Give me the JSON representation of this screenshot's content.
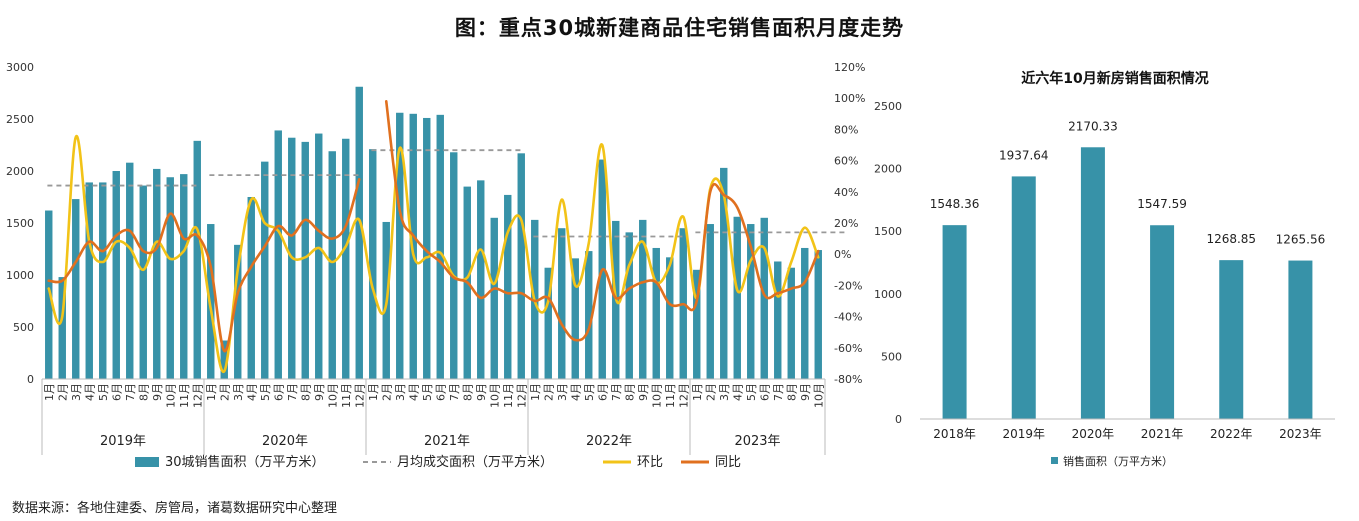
{
  "title": "图：重点30城新建商品住宅销售面积月度走势",
  "source": "数据来源：各地住建委、房管局，诸葛数据研究中心整理",
  "colors": {
    "bar": "#3792a8",
    "avg": "#999999",
    "mom": "#f2c318",
    "yoy": "#e0701f",
    "axis": "#bbbbbb",
    "text": "#333333"
  },
  "chart_data": [
    {
      "type": "bar",
      "title": "",
      "categories": [
        {
          "month": "1月",
          "year": "2019年"
        },
        {
          "month": "2月",
          "year": "2019年"
        },
        {
          "month": "3月",
          "year": "2019年"
        },
        {
          "month": "4月",
          "year": "2019年"
        },
        {
          "month": "5月",
          "year": "2019年"
        },
        {
          "month": "6月",
          "year": "2019年"
        },
        {
          "month": "7月",
          "year": "2019年"
        },
        {
          "month": "8月",
          "year": "2019年"
        },
        {
          "month": "9月",
          "year": "2019年"
        },
        {
          "month": "10月",
          "year": "2019年"
        },
        {
          "month": "11月",
          "year": "2019年"
        },
        {
          "month": "12月",
          "year": "2019年"
        },
        {
          "month": "1月",
          "year": "2020年"
        },
        {
          "month": "2月",
          "year": "2020年"
        },
        {
          "month": "3月",
          "year": "2020年"
        },
        {
          "month": "4月",
          "year": "2020年"
        },
        {
          "month": "5月",
          "year": "2020年"
        },
        {
          "month": "6月",
          "year": "2020年"
        },
        {
          "month": "7月",
          "year": "2020年"
        },
        {
          "month": "8月",
          "year": "2020年"
        },
        {
          "month": "9月",
          "year": "2020年"
        },
        {
          "month": "10月",
          "year": "2020年"
        },
        {
          "month": "11月",
          "year": "2020年"
        },
        {
          "month": "12月",
          "year": "2020年"
        },
        {
          "month": "1月",
          "year": "2021年"
        },
        {
          "month": "2月",
          "year": "2021年"
        },
        {
          "month": "3月",
          "year": "2021年"
        },
        {
          "month": "4月",
          "year": "2021年"
        },
        {
          "month": "5月",
          "year": "2021年"
        },
        {
          "month": "6月",
          "year": "2021年"
        },
        {
          "month": "7月",
          "year": "2021年"
        },
        {
          "month": "8月",
          "year": "2021年"
        },
        {
          "month": "9月",
          "year": "2021年"
        },
        {
          "month": "10月",
          "year": "2021年"
        },
        {
          "month": "11月",
          "year": "2021年"
        },
        {
          "month": "12月",
          "year": "2021年"
        },
        {
          "month": "1月",
          "year": "2022年"
        },
        {
          "month": "2月",
          "year": "2022年"
        },
        {
          "month": "3月",
          "year": "2022年"
        },
        {
          "month": "4月",
          "year": "2022年"
        },
        {
          "month": "5月",
          "year": "2022年"
        },
        {
          "month": "6月",
          "year": "2022年"
        },
        {
          "month": "7月",
          "year": "2022年"
        },
        {
          "month": "8月",
          "year": "2022年"
        },
        {
          "month": "9月",
          "year": "2022年"
        },
        {
          "month": "10月",
          "year": "2022年"
        },
        {
          "month": "11月",
          "year": "2022年"
        },
        {
          "month": "12月",
          "year": "2022年"
        },
        {
          "month": "1月",
          "year": "2023年"
        },
        {
          "month": "2月",
          "year": "2023年"
        },
        {
          "month": "3月",
          "year": "2023年"
        },
        {
          "month": "4月",
          "year": "2023年"
        },
        {
          "month": "5月",
          "year": "2023年"
        },
        {
          "month": "6月",
          "year": "2023年"
        },
        {
          "month": "7月",
          "year": "2023年"
        },
        {
          "month": "8月",
          "year": "2023年"
        },
        {
          "month": "9月",
          "year": "2023年"
        },
        {
          "month": "10月",
          "year": "2023年"
        }
      ],
      "years": [
        "2019年",
        "2020年",
        "2021年",
        "2022年",
        "2023年"
      ],
      "series": [
        {
          "name": "30城销售面积（万平方米）",
          "type": "bar",
          "axis": "left",
          "values": [
            1620,
            980,
            1730,
            1890,
            1890,
            2000,
            2080,
            1860,
            2020,
            1940,
            1970,
            2290,
            1490,
            370,
            1290,
            1750,
            2090,
            2390,
            2320,
            2280,
            2360,
            2190,
            2310,
            2810,
            2210,
            1510,
            2560,
            2550,
            2510,
            2540,
            2180,
            1850,
            1910,
            1550,
            1770,
            2170,
            1530,
            1070,
            1450,
            1160,
            1230,
            2110,
            1520,
            1410,
            1530,
            1260,
            1170,
            1450,
            1050,
            1490,
            2030,
            1560,
            1490,
            1550,
            1130,
            1070,
            1260,
            1240
          ]
        },
        {
          "name": "月均成交面积（万平方米）",
          "type": "line",
          "dashed": true,
          "axis": "left",
          "segments": [
            {
              "year": "2019年",
              "value": 1860
            },
            {
              "year": "2020年",
              "value": 1960
            },
            {
              "year": "2021年",
              "value": 2200
            },
            {
              "year": "2022年",
              "value": 1370
            },
            {
              "year": "2023年",
              "value": 1410
            }
          ]
        },
        {
          "name": "环比",
          "type": "line",
          "axis": "right",
          "values": [
            -22,
            -40,
            75,
            8,
            -5,
            8,
            4,
            -10,
            8,
            -3,
            2,
            16,
            -35,
            -75,
            -10,
            35,
            20,
            15,
            -2,
            -2,
            4,
            -5,
            5,
            22,
            -22,
            -32,
            68,
            0,
            -2,
            1,
            -14,
            -15,
            3,
            -19,
            14,
            22,
            -30,
            -30,
            35,
            -20,
            7,
            70,
            -28,
            -7,
            8,
            -18,
            -7,
            24,
            -28,
            42,
            38,
            -23,
            -4,
            4,
            -27,
            -5,
            17,
            -2
          ]
        },
        {
          "name": "同比",
          "type": "line",
          "axis": "right",
          "values": [
            -17,
            -17,
            -5,
            8,
            2,
            12,
            15,
            2,
            4,
            26,
            10,
            12,
            -8,
            -62,
            -25,
            -8,
            5,
            18,
            12,
            22,
            15,
            10,
            18,
            48,
            null,
            98,
            28,
            12,
            2,
            -5,
            -15,
            -18,
            -28,
            -22,
            -25,
            -25,
            -30,
            -28,
            -45,
            -55,
            -48,
            -10,
            -28,
            -22,
            -18,
            -18,
            -32,
            -32,
            -30,
            40,
            38,
            30,
            5,
            -26,
            -25,
            -22,
            -18,
            2
          ]
        }
      ],
      "left_axis": {
        "min": 0,
        "max": 3000,
        "ticks": [
          "0",
          "500",
          "1000",
          "1500",
          "2000",
          "2500",
          "3000"
        ]
      },
      "right_axis": {
        "min": -80,
        "max": 120,
        "ticks": [
          "-80%",
          "-60%",
          "-40%",
          "-20%",
          "0%",
          "20%",
          "40%",
          "60%",
          "80%",
          "100%",
          "120%"
        ]
      }
    },
    {
      "type": "bar",
      "title": "近六年10月新房销售面积情况",
      "categories": [
        "2018年",
        "2019年",
        "2020年",
        "2021年",
        "2022年",
        "2023年"
      ],
      "values": [
        1548.36,
        1937.64,
        2170.33,
        1547.59,
        1268.85,
        1265.56
      ],
      "labels": [
        "1548.36",
        "1937.64",
        "2170.33",
        "1547.59",
        "1268.85",
        "1265.56"
      ],
      "legend": "销售面积（万平方米）",
      "y_axis": {
        "min": 0,
        "max": 2500,
        "ticks": [
          "0",
          "500",
          "1000",
          "1500",
          "2000",
          "2500"
        ]
      }
    }
  ]
}
